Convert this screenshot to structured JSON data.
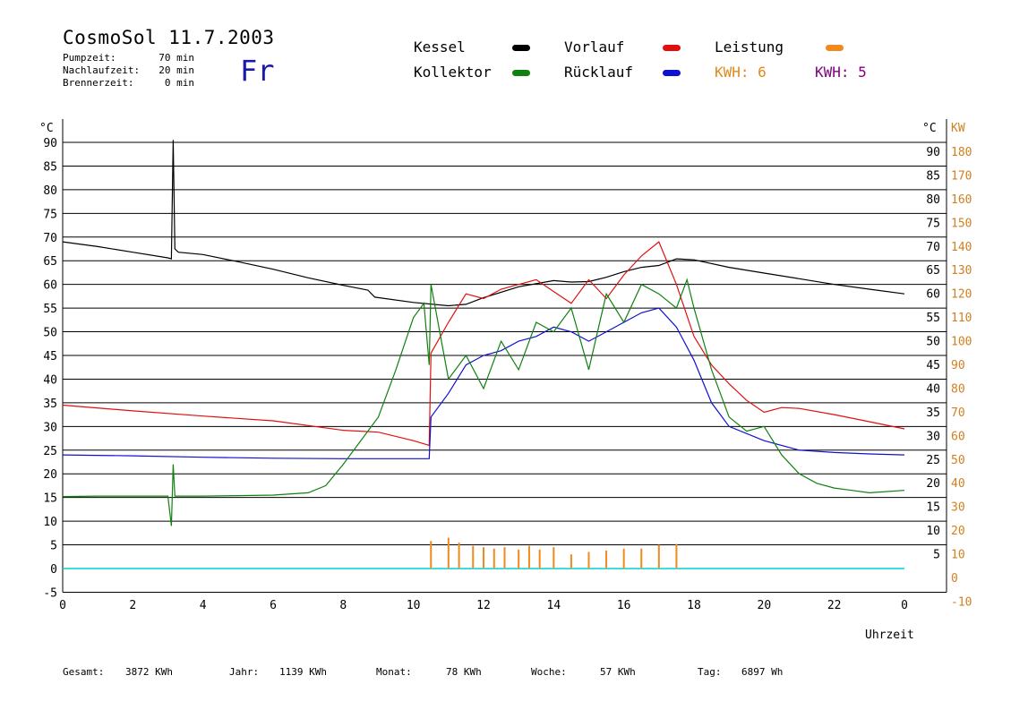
{
  "header": {
    "title": "CosmoSol 11.7.2003",
    "weekday": "Fr",
    "info": [
      {
        "label": "Pumpzeit:",
        "value": "70 min"
      },
      {
        "label": "Nachlaufzeit:",
        "value": "20 min"
      },
      {
        "label": "Brennerzeit:",
        "value": "0 min"
      }
    ]
  },
  "legend": {
    "items": [
      {
        "label": "Kessel",
        "color": "#000000"
      },
      {
        "label": "Vorlauf",
        "color": "#e01010"
      },
      {
        "label": "Leistung",
        "color": "#f08a1c"
      },
      {
        "label": "Kollektor",
        "color": "#108010"
      },
      {
        "label": "Rücklauf",
        "color": "#1010d0"
      }
    ],
    "kwh_left": "KWH: 6",
    "kwh_right": "KWH: 5",
    "kwh_left_color": "#e08a1c",
    "kwh_right_color": "#800080"
  },
  "footer": {
    "stats": [
      {
        "label": "Gesamt:",
        "value": "3872 KWh"
      },
      {
        "label": "Jahr:",
        "value": "1139 KWh"
      },
      {
        "label": "Monat:",
        "value": "78 KWh"
      },
      {
        "label": "Woche:",
        "value": "57 KWh"
      },
      {
        "label": "Tag:",
        "value": "6897 Wh"
      }
    ]
  },
  "chart_data": {
    "type": "line",
    "title": "",
    "xlabel": "Uhrzeit",
    "ylabel_left": "°C",
    "ylabel_right_unit_c": "°C",
    "ylabel_right_unit_kw": "KW",
    "xlim": [
      0,
      24
    ],
    "ylim": [
      -5,
      95
    ],
    "x_ticks": [
      "0",
      "2",
      "4",
      "6",
      "8",
      "10",
      "12",
      "14",
      "16",
      "18",
      "20",
      "22",
      "0"
    ],
    "y_ticks_left": [
      "-5",
      "0",
      "5",
      "10",
      "15",
      "20",
      "25",
      "30",
      "35",
      "40",
      "45",
      "50",
      "55",
      "60",
      "65",
      "70",
      "75",
      "80",
      "85",
      "90"
    ],
    "y_ticks_right_c": [
      "5",
      "10",
      "15",
      "20",
      "25",
      "30",
      "35",
      "40",
      "45",
      "50",
      "55",
      "60",
      "65",
      "70",
      "75",
      "80",
      "85",
      "90"
    ],
    "y_ticks_right_kw": [
      "-10",
      "0",
      "10",
      "20",
      "30",
      "40",
      "50",
      "60",
      "70",
      "80",
      "90",
      "100",
      "110",
      "120",
      "130",
      "140",
      "150",
      "160",
      "170",
      "180"
    ],
    "grid": true,
    "series": [
      {
        "name": "Kessel",
        "color": "#000000",
        "x": [
          0,
          1,
          2,
          3,
          3.1,
          3.15,
          3.2,
          3.3,
          4,
          5,
          6,
          7,
          8,
          8.7,
          8.9,
          10,
          11,
          11.5,
          12,
          13,
          14,
          14.5,
          15,
          15.5,
          16,
          16.5,
          17,
          17.5,
          18,
          19,
          20,
          21,
          22,
          23,
          24
        ],
        "y": [
          69,
          68,
          66.8,
          65.6,
          65.4,
          90.5,
          67.5,
          66.8,
          66.3,
          64.8,
          63.2,
          61.4,
          59.8,
          58.8,
          57.3,
          56.2,
          55.5,
          55.8,
          57.2,
          59.5,
          60.8,
          60.5,
          60.6,
          61.5,
          62.7,
          63.6,
          64.0,
          65.4,
          65.2,
          63.6,
          62.4,
          61.2,
          60.0,
          59.0,
          58.0
        ]
      },
      {
        "name": "Vorlauf",
        "color": "#e01010",
        "x": [
          0,
          2,
          4,
          6,
          8,
          9,
          10,
          10.45,
          10.5,
          11,
          11.5,
          12,
          12.5,
          13,
          13.5,
          14,
          14.5,
          15,
          15.5,
          16,
          16.5,
          17,
          17.5,
          18,
          18.5,
          19,
          19.5,
          20,
          20.5,
          21,
          22,
          23,
          24
        ],
        "y": [
          34.5,
          33.3,
          32.2,
          31.2,
          29.2,
          28.8,
          27.0,
          26.0,
          45.5,
          52.0,
          58.0,
          57.0,
          59.0,
          60.0,
          61.0,
          58.5,
          56.0,
          61.0,
          57.0,
          62.0,
          66.0,
          69.0,
          60.0,
          49.0,
          43.0,
          39.0,
          35.5,
          33.0,
          34.0,
          33.8,
          32.5,
          31.0,
          29.5
        ]
      },
      {
        "name": "Rücklauf",
        "color": "#1010d0",
        "x": [
          0,
          2,
          4,
          6,
          8,
          10,
          10.45,
          10.5,
          11,
          11.5,
          12,
          12.5,
          13,
          13.5,
          14,
          14.5,
          15,
          15.5,
          16,
          16.5,
          17,
          17.5,
          18,
          18.5,
          19,
          20,
          21,
          22,
          23,
          24
        ],
        "y": [
          24.0,
          23.8,
          23.5,
          23.3,
          23.2,
          23.2,
          23.2,
          32.0,
          37.0,
          43.0,
          45.0,
          46.0,
          48.0,
          49.0,
          51.0,
          50.0,
          48.0,
          50.0,
          52.0,
          54.0,
          55.0,
          51.0,
          44.0,
          35.0,
          30.0,
          27.0,
          25.0,
          24.5,
          24.2,
          24.0
        ]
      },
      {
        "name": "Kollektor",
        "color": "#108010",
        "x": [
          0,
          1,
          2,
          3,
          3.1,
          3.15,
          3.2,
          4,
          5,
          6,
          7,
          7.5,
          8,
          9,
          9.5,
          10,
          10.3,
          10.45,
          10.5,
          11,
          11.5,
          12,
          12.5,
          13,
          13.5,
          14,
          14.5,
          15,
          15.5,
          16,
          16.5,
          17,
          17.5,
          17.8,
          18,
          18.5,
          19,
          19.5,
          20,
          20.5,
          21,
          21.5,
          22,
          22.5,
          23,
          24
        ],
        "y": [
          15.2,
          15.3,
          15.3,
          15.3,
          9.0,
          22.0,
          15.3,
          15.3,
          15.4,
          15.5,
          16.0,
          17.5,
          22.0,
          32.0,
          42.0,
          53.0,
          56.0,
          43.0,
          60.0,
          40.0,
          45.0,
          38.0,
          48.0,
          42.0,
          52.0,
          50.0,
          55.0,
          42.0,
          58.0,
          52.0,
          60.0,
          58.0,
          55.0,
          61.0,
          55.0,
          42.0,
          32.0,
          29.0,
          30.0,
          24.0,
          20.0,
          18.0,
          17.0,
          16.5,
          16.0,
          16.5
        ]
      },
      {
        "name": "Leistung",
        "color": "#f08a1c",
        "x": [
          10.5,
          11,
          11.3,
          11.7,
          12,
          12.3,
          12.6,
          13,
          13.3,
          13.6,
          14,
          14.5,
          15,
          15.5,
          16,
          16.5,
          17,
          17.5
        ],
        "y": [
          5.8,
          6.5,
          5.5,
          4.8,
          4.5,
          4.2,
          4.5,
          4.0,
          4.8,
          4.0,
          4.5,
          3.0,
          3.5,
          3.8,
          4.2,
          4.2,
          5.0,
          5.2
        ]
      }
    ]
  }
}
